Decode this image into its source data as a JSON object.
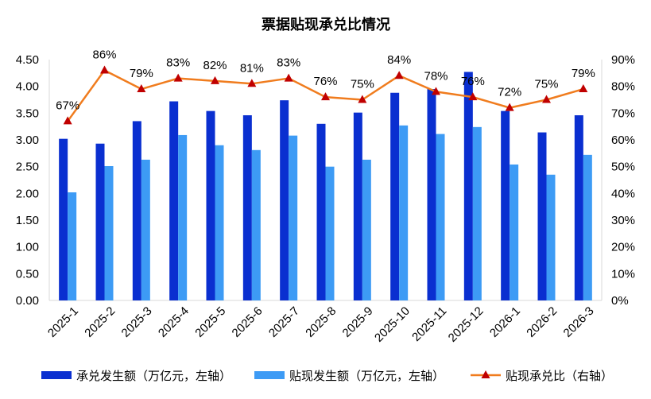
{
  "chart_data": {
    "type": "bar+line",
    "title": "票据贴现承兑比情况",
    "categories": [
      "2025-1",
      "2025-2",
      "2025-3",
      "2025-4",
      "2025-5",
      "2025-6",
      "2025-7",
      "2025-8",
      "2025-9",
      "2025-10",
      "2025-11",
      "2025-12",
      "2026-1",
      "2026-2",
      "2026-3"
    ],
    "series": [
      {
        "name": "承兑发生额（万亿元，左轴）",
        "type": "bar",
        "axis": "left",
        "color": "#0a2fd0",
        "values": [
          3.02,
          2.93,
          3.35,
          3.72,
          3.54,
          3.46,
          3.74,
          3.3,
          3.51,
          3.88,
          3.95,
          4.27,
          3.54,
          3.14,
          3.46
        ]
      },
      {
        "name": "贴现发生额（万亿元，左轴）",
        "type": "bar",
        "axis": "left",
        "color": "#3d9bf5",
        "values": [
          2.02,
          2.51,
          2.63,
          3.09,
          2.9,
          2.81,
          3.08,
          2.5,
          2.63,
          3.27,
          3.11,
          3.24,
          2.54,
          2.35,
          2.72
        ]
      },
      {
        "name": "贴现承兑比（右轴）",
        "type": "line",
        "axis": "right",
        "color": "#f07c1e",
        "marker_color": "#c00000",
        "values": [
          67,
          86,
          79,
          83,
          82,
          81,
          83,
          76,
          75,
          84,
          78,
          76,
          72,
          75,
          79
        ],
        "labels": [
          "67%",
          "86%",
          "79%",
          "83%",
          "82%",
          "81%",
          "83%",
          "76%",
          "75%",
          "84%",
          "78%",
          "76%",
          "72%",
          "75%",
          "79%"
        ]
      }
    ],
    "left_axis": {
      "ylim": [
        0,
        4.5
      ],
      "ticks": [
        "0.00",
        "0.50",
        "1.00",
        "1.50",
        "2.00",
        "2.50",
        "3.00",
        "3.50",
        "4.00",
        "4.50"
      ]
    },
    "right_axis": {
      "ylim": [
        0,
        90
      ],
      "ticks": [
        "0%",
        "10%",
        "20%",
        "30%",
        "40%",
        "50%",
        "60%",
        "70%",
        "80%",
        "90%"
      ]
    },
    "grid": false,
    "legend_position": "bottom"
  }
}
